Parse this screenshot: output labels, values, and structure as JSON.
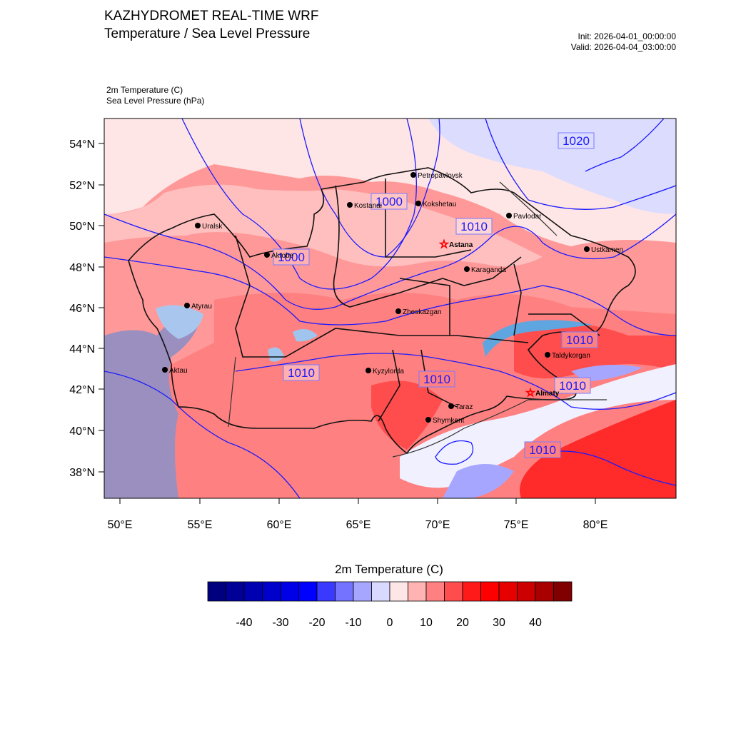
{
  "header": {
    "title": "KAZHYDROMET REAL-TIME WRF",
    "subtitle": "Temperature / Sea Level Pressure",
    "init": "Init: 2026-04-01_00:00:00",
    "valid": "Valid: 2026-04-04_03:00:00"
  },
  "fields": {
    "temp_label": "2m Temperature   (C)",
    "slp_label": "Sea Level Pressure   (hPa)"
  },
  "axes": {
    "lat_labels": [
      "54°N",
      "52°N",
      "50°N",
      "48°N",
      "46°N",
      "44°N",
      "42°N",
      "40°N",
      "38°N"
    ],
    "lon_labels": [
      "50°E",
      "55°E",
      "60°E",
      "65°E",
      "70°E",
      "75°E",
      "80°E"
    ]
  },
  "cities": [
    {
      "name": "Petropavlovsk",
      "bold": false
    },
    {
      "name": "Kostanai",
      "bold": false
    },
    {
      "name": "Kokshetau",
      "bold": false
    },
    {
      "name": "Pavlodar",
      "bold": false
    },
    {
      "name": "Uralsk",
      "bold": false
    },
    {
      "name": "Astana",
      "bold": true
    },
    {
      "name": "Aktobe",
      "bold": false
    },
    {
      "name": "Ustkamen",
      "bold": false
    },
    {
      "name": "Karaganda",
      "bold": false
    },
    {
      "name": "Atyrau",
      "bold": false
    },
    {
      "name": "Zheskazgan",
      "bold": false
    },
    {
      "name": "Taldykorgan",
      "bold": false
    },
    {
      "name": "Aktau",
      "bold": false
    },
    {
      "name": "Kyzylorda",
      "bold": false
    },
    {
      "name": "Almaty",
      "bold": true
    },
    {
      "name": "Taraz",
      "bold": false
    },
    {
      "name": "Shymkent",
      "bold": false
    }
  ],
  "isobars": [
    "1020",
    "1000",
    "1010",
    "1000",
    "1010",
    "1010",
    "1010",
    "1010",
    "1010"
  ],
  "colorbar": {
    "title": "2m Temperature  (C)",
    "tick_labels": [
      "-40",
      "-30",
      "-20",
      "-10",
      "0",
      "10",
      "20",
      "30",
      "40"
    ],
    "colors": [
      "#00007f",
      "#000099",
      "#0000b3",
      "#0000cc",
      "#0000e6",
      "#0000ff",
      "#3a3aff",
      "#7373ff",
      "#a6a6ff",
      "#d9d9ff",
      "#ffe6e6",
      "#ffb3b3",
      "#ff8080",
      "#ff4d4d",
      "#ff1a1a",
      "#ff0000",
      "#e60000",
      "#cc0000",
      "#a80000",
      "#800000"
    ]
  }
}
